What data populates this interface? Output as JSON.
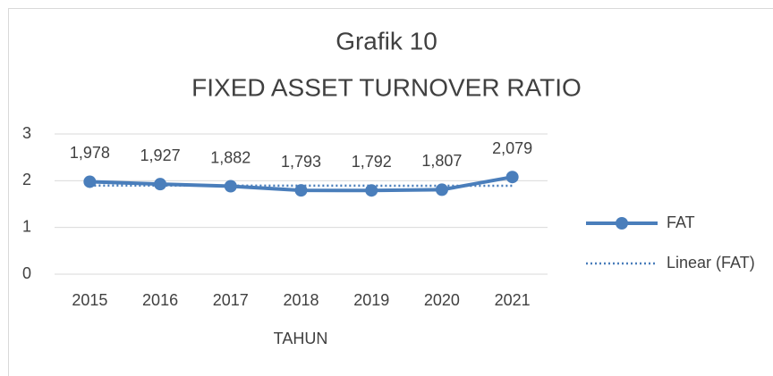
{
  "chart_data": {
    "type": "line",
    "title": "Grafik 10",
    "subtitle": "FIXED ASSET TURNOVER RATIO",
    "x_label": "TAHUN",
    "categories": [
      "2015",
      "2016",
      "2017",
      "2018",
      "2019",
      "2020",
      "2021"
    ],
    "series": [
      {
        "name": "FAT",
        "color": "#4a7ebb",
        "style": "solid",
        "markers": true,
        "values": [
          1.978,
          1.927,
          1.882,
          1.793,
          1.792,
          1.807,
          2.079
        ],
        "value_labels": [
          "1,978",
          "1,927",
          "1,882",
          "1,793",
          "1,792",
          "1,807",
          "2,079"
        ]
      },
      {
        "name": "Linear (FAT)",
        "color": "#4a7ebb",
        "style": "dotted",
        "markers": false,
        "values": [
          1.897,
          1.896,
          1.895,
          1.894,
          1.893,
          1.892,
          1.891
        ]
      }
    ],
    "ylim": [
      0,
      3
    ],
    "yticks": [
      0,
      1,
      2,
      3
    ],
    "grid": true,
    "legend": "right"
  }
}
